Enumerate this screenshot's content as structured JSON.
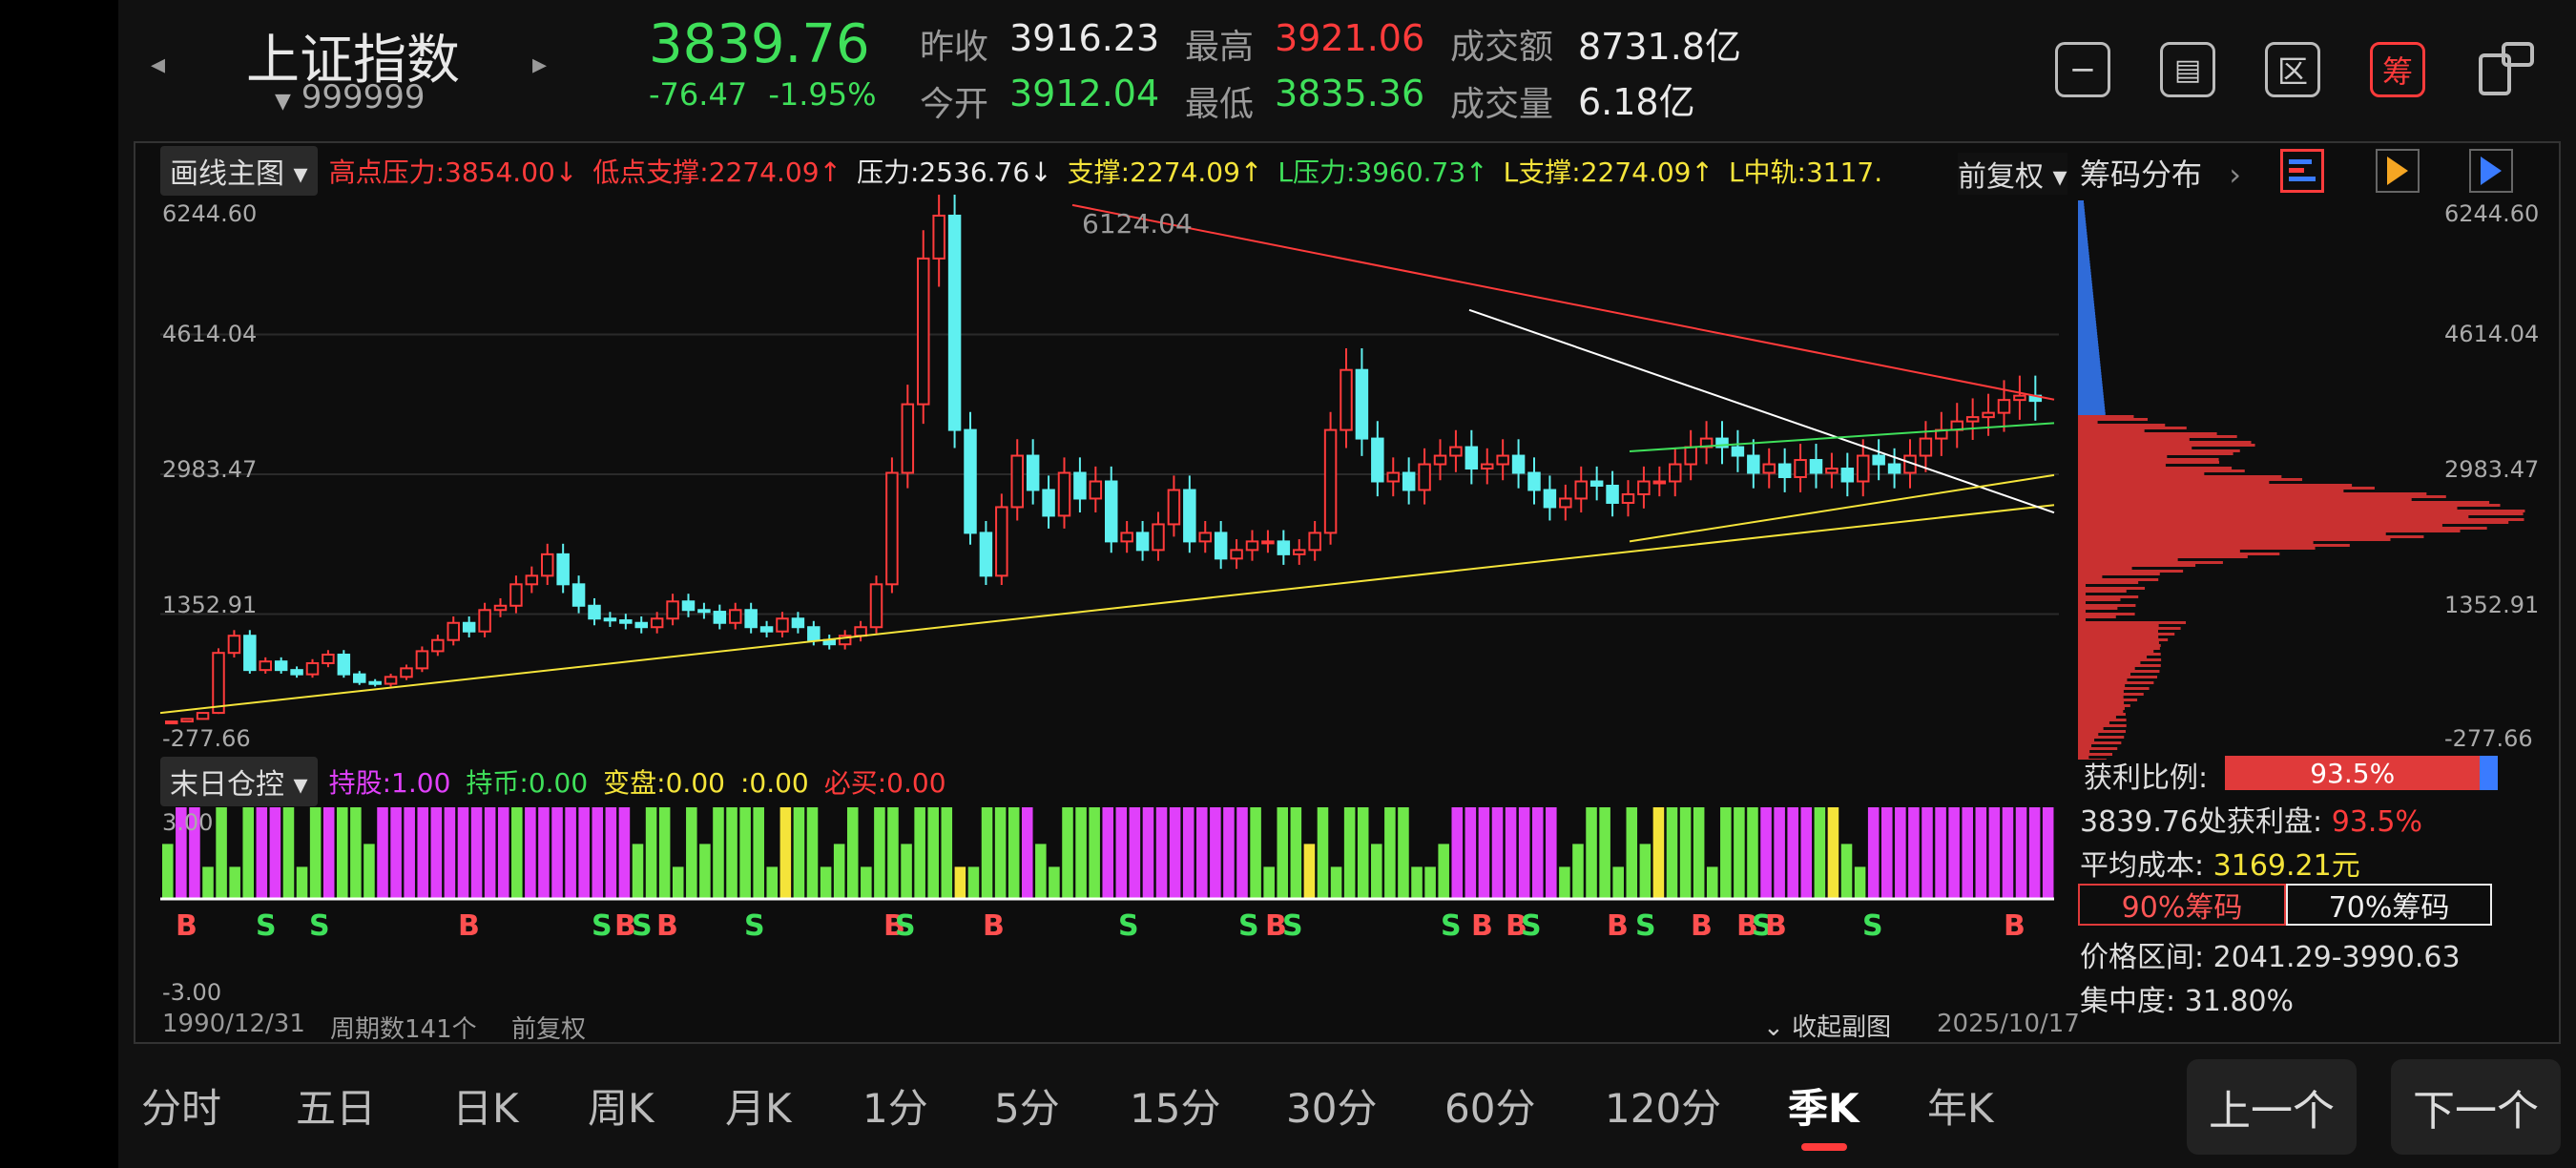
{
  "header": {
    "index_name": "上证指数",
    "index_code": "999999",
    "price": "3839.76",
    "change": "-76.47",
    "change_pct": "-1.95%",
    "prev_close_label": "昨收",
    "prev_close": "3916.23",
    "open_label": "今开",
    "open": "3912.04",
    "high_label": "最高",
    "high": "3921.06",
    "low_label": "最低",
    "low": "3835.36",
    "amount_label": "成交额",
    "amount": "8731.8亿",
    "volume_label": "成交量",
    "volume": "6.18亿",
    "chip_btn": "筹"
  },
  "main_legend": {
    "menu": "画线主图",
    "items": [
      {
        "text": "高点压力:3854.00↓",
        "color": "#ff3b3b"
      },
      {
        "text": "低点支撑:2274.09↑",
        "color": "#ff3b3b"
      },
      {
        "text": "压力:2536.76↓",
        "color": "#eaeaea"
      },
      {
        "text": "支撑:2274.09↑",
        "color": "#f5e43a"
      },
      {
        "text": "L压力:3960.73↑",
        "color": "#3fe05a"
      },
      {
        "text": "L支撑:2274.09↑",
        "color": "#f5e43a"
      },
      {
        "text": "L中轨:3117.",
        "color": "#f5e43a"
      }
    ],
    "restore_menu": "前复权"
  },
  "main_axis": [
    "6244.60",
    "4614.04",
    "2983.47",
    "1352.91",
    "-277.66"
  ],
  "peak_label": "6124.04",
  "sub_legend": {
    "menu": "末日仓控",
    "items": [
      {
        "text": "持股:1.00",
        "color": "#e040fb"
      },
      {
        "text": "持币:0.00",
        "color": "#3fe05a"
      },
      {
        "text": "变盘:0.00",
        "color": "#f5e43a"
      },
      {
        "text": ":0.00",
        "color": "#f5e43a"
      },
      {
        "text": "必买:0.00",
        "color": "#ff3b3b"
      }
    ]
  },
  "sub_axis": [
    "3.00",
    "-3.00"
  ],
  "footer": {
    "start_date": "1990/12/31",
    "period_count": "周期数141个",
    "restore": "前复权",
    "collapse": "收起副图",
    "end_date": "2025/10/17"
  },
  "chip_panel": {
    "title": "筹码分布",
    "axis": [
      "6244.60",
      "4614.04",
      "2983.47",
      "1352.91",
      "-277.66"
    ],
    "profit_ratio_label": "获利比例:",
    "profit_ratio": "93.5%",
    "profit_at_label": "3839.76处获利盘:",
    "profit_at": "93.5%",
    "avg_cost_label": "平均成本:",
    "avg_cost": "3169.21元",
    "tab_90": "90%筹码",
    "tab_70": "70%筹码",
    "range_label": "价格区间:",
    "range": "2041.29-3990.63",
    "concentration_label": "集中度:",
    "concentration": "31.80%"
  },
  "periods": [
    "分时",
    "五日",
    "日K",
    "周K",
    "月K",
    "1分",
    "5分",
    "15分",
    "30分",
    "60分",
    "120分",
    "季K",
    "年K"
  ],
  "active_period": "季K",
  "nav": {
    "prev": "上一个",
    "next": "下一个"
  }
}
